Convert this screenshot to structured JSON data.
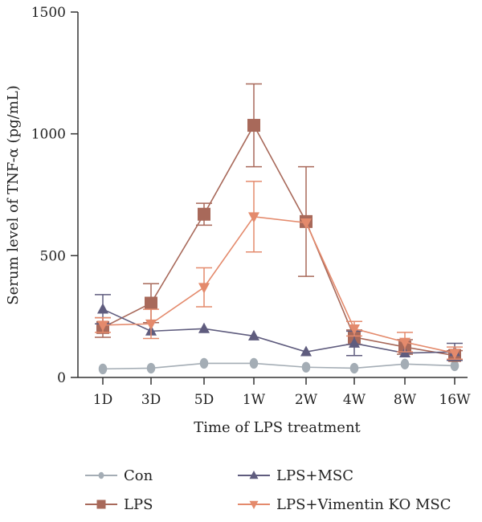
{
  "chart_data": {
    "type": "line",
    "xlabel": "Time of LPS treatment",
    "ylabel": "Serum level of TNF-α (pg/mL)",
    "ylim": [
      0,
      1500
    ],
    "yticks": [
      "0",
      "500",
      "1000",
      "1500"
    ],
    "categories": [
      "1D",
      "3D",
      "5D",
      "1W",
      "2W",
      "4W",
      "8W",
      "16W"
    ],
    "grid": false,
    "legend_position": "bottom",
    "series": [
      {
        "name": "Con",
        "color": "#a4adb5",
        "marker": "circle",
        "values": [
          35,
          38,
          58,
          58,
          42,
          38,
          55,
          48
        ],
        "error": [
          0,
          0,
          0,
          0,
          0,
          0,
          0,
          0
        ]
      },
      {
        "name": "LPS",
        "color": "#a8695a",
        "marker": "square",
        "values": [
          205,
          305,
          670,
          1035,
          640,
          165,
          125,
          90
        ],
        "error": [
          40,
          80,
          45,
          170,
          225,
          30,
          30,
          20
        ]
      },
      {
        "name": "LPS+MSC",
        "color": "#5f5c7e",
        "marker": "triangle-up",
        "values": [
          280,
          190,
          200,
          170,
          105,
          140,
          100,
          105
        ],
        "error": [
          60,
          0,
          0,
          0,
          0,
          50,
          0,
          35
        ]
      },
      {
        "name": "LPS+Vimentin KO MSC",
        "color": "#e48a6c",
        "marker": "triangle-down",
        "values": [
          215,
          220,
          370,
          660,
          635,
          200,
          145,
          100
        ],
        "error": [
          30,
          60,
          80,
          145,
          0,
          30,
          40,
          25
        ]
      }
    ]
  }
}
